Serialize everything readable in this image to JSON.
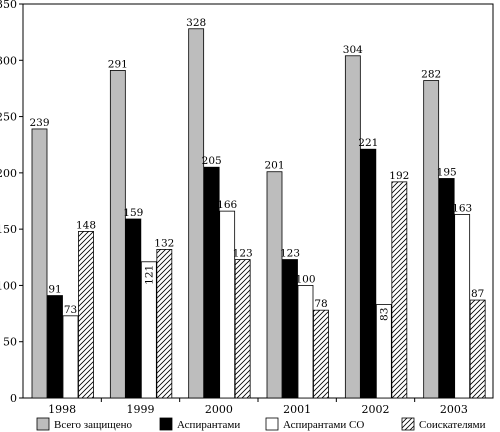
{
  "chart_data": {
    "type": "bar",
    "title": "",
    "xlabel": "",
    "ylabel": "",
    "ylim": [
      0,
      350
    ],
    "yticks": [
      0,
      50,
      100,
      150,
      200,
      250,
      300,
      350
    ],
    "grid": false,
    "legend_position": "bottom",
    "categories": [
      "1998",
      "1999",
      "2000",
      "2001",
      "2002",
      "2003"
    ],
    "series": [
      {
        "name": "Всего защищено",
        "values": [
          239,
          291,
          328,
          201,
          304,
          282
        ],
        "fill": "#bdbdbd",
        "pattern": "solid"
      },
      {
        "name": "Аспирантами",
        "values": [
          91,
          159,
          205,
          123,
          221,
          195
        ],
        "fill": "#000000",
        "pattern": "solid"
      },
      {
        "name": "Аспирантами СО",
        "values": [
          73,
          121,
          166,
          100,
          83,
          163
        ],
        "fill": "#ffffff",
        "pattern": "solid"
      },
      {
        "name": "Соискателями",
        "values": [
          148,
          132,
          123,
          78,
          192,
          87
        ],
        "fill": "#ffffff",
        "pattern": "hatched"
      }
    ],
    "data_label_rotation": [
      [
        0,
        0,
        0,
        0
      ],
      [
        0,
        0,
        -90,
        0
      ],
      [
        0,
        0,
        0,
        0
      ],
      [
        0,
        0,
        0,
        0
      ],
      [
        0,
        0,
        -90,
        0
      ],
      [
        0,
        0,
        0,
        0
      ]
    ]
  }
}
